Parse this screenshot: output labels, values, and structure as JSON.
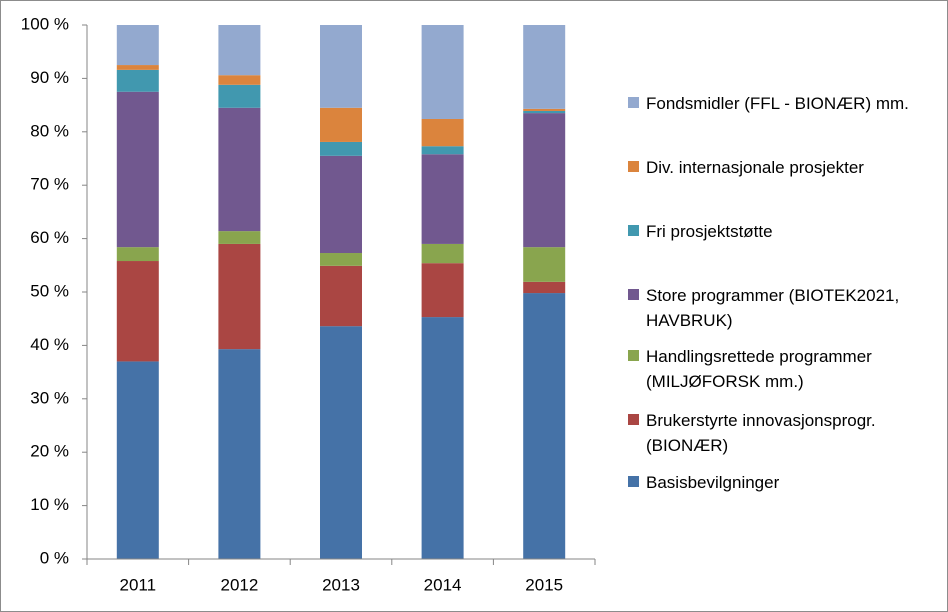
{
  "chart_data": {
    "type": "stacked_bar",
    "categories": [
      "2011",
      "2012",
      "2013",
      "2014",
      "2015"
    ],
    "series": [
      {
        "name": "Basisbevilgninger",
        "color": "#4572a7",
        "values": [
          37,
          39.3,
          43.6,
          45.3,
          49.8
        ]
      },
      {
        "name": "Brukerstyrte innovasjonsprogr. (BIONÆR)",
        "color": "#aa4643",
        "values": [
          18.8,
          19.7,
          11.3,
          10.1,
          2.1
        ]
      },
      {
        "name": "Handlingsrettede programmer (MILJØFORSK mm.)",
        "color": "#89a54e",
        "values": [
          2.6,
          2.4,
          2.4,
          3.6,
          6.5
        ]
      },
      {
        "name": "Store programmer (BIOTEK2021, HAVBRUK)",
        "color": "#71588f",
        "values": [
          29.1,
          23.1,
          18.2,
          16.8,
          25.1
        ]
      },
      {
        "name": "Fri prosjektstøtte",
        "color": "#4198af",
        "values": [
          4.1,
          4.3,
          2.6,
          1.5,
          0.4
        ]
      },
      {
        "name": "Div. internasjonale prosjekter",
        "color": "#db843d",
        "values": [
          0.9,
          1.8,
          6.4,
          5.1,
          0.4
        ]
      },
      {
        "name": "Fondsmidler (FFL - BIONÆR) mm.",
        "color": "#93a9cf",
        "values": [
          7.5,
          9.4,
          15.5,
          17.6,
          15.7
        ]
      }
    ],
    "ylim": [
      0,
      100
    ],
    "yticks": [
      {
        "value": 0,
        "label": "0 %"
      },
      {
        "value": 10,
        "label": "10 %"
      },
      {
        "value": 20,
        "label": "20 %"
      },
      {
        "value": 30,
        "label": "30 %"
      },
      {
        "value": 40,
        "label": "40 %"
      },
      {
        "value": 50,
        "label": "50 %"
      },
      {
        "value": 60,
        "label": "60 %"
      },
      {
        "value": 70,
        "label": "70 %"
      },
      {
        "value": 80,
        "label": "80 %"
      },
      {
        "value": 90,
        "label": "90 %"
      },
      {
        "value": 100,
        "label": "100 %"
      }
    ],
    "legend": "right"
  }
}
